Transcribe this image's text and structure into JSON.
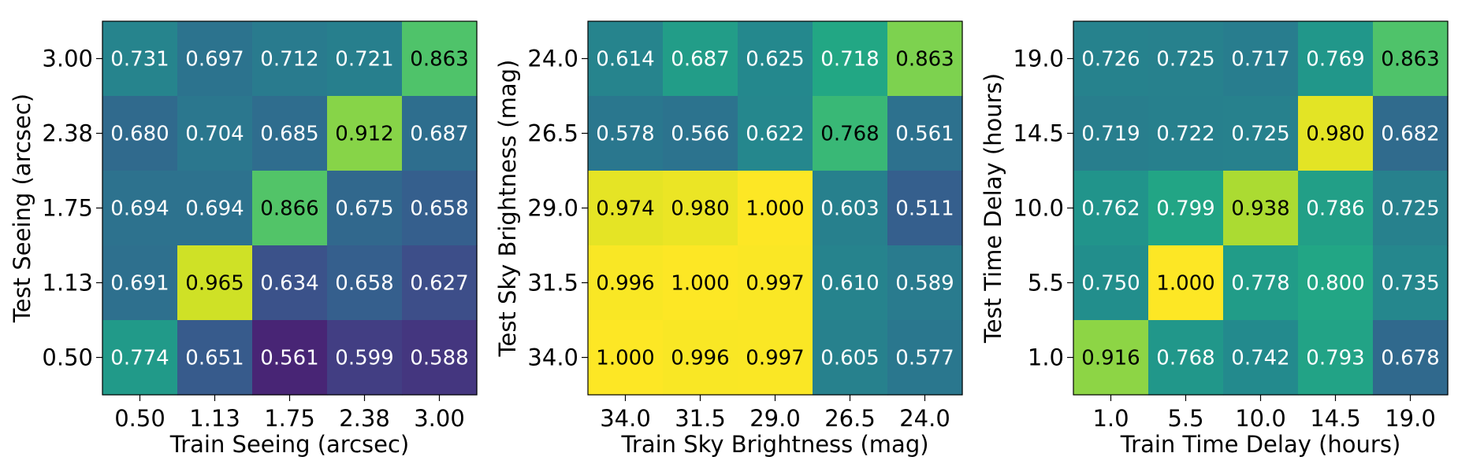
{
  "chart_data": [
    {
      "type": "heatmap",
      "xlabel": "Train Seeing (arcsec)",
      "ylabel": "Test Seeing (arcsec)",
      "x_ticks": [
        "0.50",
        "1.13",
        "1.75",
        "2.38",
        "3.00"
      ],
      "y_ticks": [
        "3.00",
        "2.38",
        "1.75",
        "1.13",
        "0.50"
      ],
      "values": [
        [
          0.731,
          0.697,
          0.712,
          0.721,
          0.863
        ],
        [
          0.68,
          0.704,
          0.685,
          0.912,
          0.687
        ],
        [
          0.694,
          0.694,
          0.866,
          0.675,
          0.658
        ],
        [
          0.691,
          0.965,
          0.634,
          0.658,
          0.627
        ],
        [
          0.774,
          0.651,
          0.561,
          0.599,
          0.588
        ]
      ],
      "labels": [
        [
          "0.731",
          "0.697",
          "0.712",
          "0.721",
          "0.863"
        ],
        [
          "0.680",
          "0.704",
          "0.685",
          "0.912",
          "0.687"
        ],
        [
          "0.694",
          "0.694",
          "0.866",
          "0.675",
          "0.658"
        ],
        [
          "0.691",
          "0.965",
          "0.634",
          "0.658",
          "0.627"
        ],
        [
          "0.774",
          "0.651",
          "0.561",
          "0.599",
          "0.588"
        ]
      ],
      "colormap": "viridis",
      "value_range": [
        0.511,
        1.0
      ]
    },
    {
      "type": "heatmap",
      "xlabel": "Train Sky Brightness (mag)",
      "ylabel": "Test Sky Brightness (mag)",
      "x_ticks": [
        "34.0",
        "31.5",
        "29.0",
        "26.5",
        "24.0"
      ],
      "y_ticks": [
        "24.0",
        "26.5",
        "29.0",
        "31.5",
        "34.0"
      ],
      "values": [
        [
          0.614,
          0.687,
          0.625,
          0.718,
          0.863
        ],
        [
          0.578,
          0.566,
          0.622,
          0.768,
          0.561
        ],
        [
          0.974,
          0.98,
          1.0,
          0.603,
          0.511
        ],
        [
          0.996,
          1.0,
          0.997,
          0.61,
          0.589
        ],
        [
          1.0,
          0.996,
          0.997,
          0.605,
          0.577
        ]
      ],
      "labels": [
        [
          "0.614",
          "0.687",
          "0.625",
          "0.718",
          "0.863"
        ],
        [
          "0.578",
          "0.566",
          "0.622",
          "0.768",
          "0.561"
        ],
        [
          "0.974",
          "0.980",
          "1.000",
          "0.603",
          "0.511"
        ],
        [
          "0.996",
          "1.000",
          "0.997",
          "0.610",
          "0.589"
        ],
        [
          "1.000",
          "0.996",
          "0.997",
          "0.605",
          "0.577"
        ]
      ],
      "colormap": "viridis",
      "value_range": [
        0.3,
        1.0
      ]
    },
    {
      "type": "heatmap",
      "xlabel": "Train Time Delay (hours)",
      "ylabel": "Test Time Delay (hours)",
      "x_ticks": [
        "1.0",
        "5.5",
        "10.0",
        "14.5",
        "19.0"
      ],
      "y_ticks": [
        "19.0",
        "14.5",
        "10.0",
        "5.5",
        "1.0"
      ],
      "values": [
        [
          0.726,
          0.725,
          0.717,
          0.769,
          0.863
        ],
        [
          0.719,
          0.722,
          0.725,
          0.98,
          0.682
        ],
        [
          0.762,
          0.799,
          0.938,
          0.786,
          0.725
        ],
        [
          0.75,
          1.0,
          0.778,
          0.8,
          0.735
        ],
        [
          0.916,
          0.768,
          0.742,
          0.793,
          0.678
        ]
      ],
      "labels": [
        [
          "0.726",
          "0.725",
          "0.717",
          "0.769",
          "0.863"
        ],
        [
          "0.719",
          "0.722",
          "0.725",
          "0.980",
          "0.682"
        ],
        [
          "0.762",
          "0.799",
          "0.938",
          "0.786",
          "0.725"
        ],
        [
          "0.750",
          "1.000",
          "0.778",
          "0.800",
          "0.735"
        ],
        [
          "0.916",
          "0.768",
          "0.742",
          "0.793",
          "0.678"
        ]
      ],
      "colormap": "viridis",
      "value_range": [
        0.511,
        1.0
      ]
    }
  ]
}
